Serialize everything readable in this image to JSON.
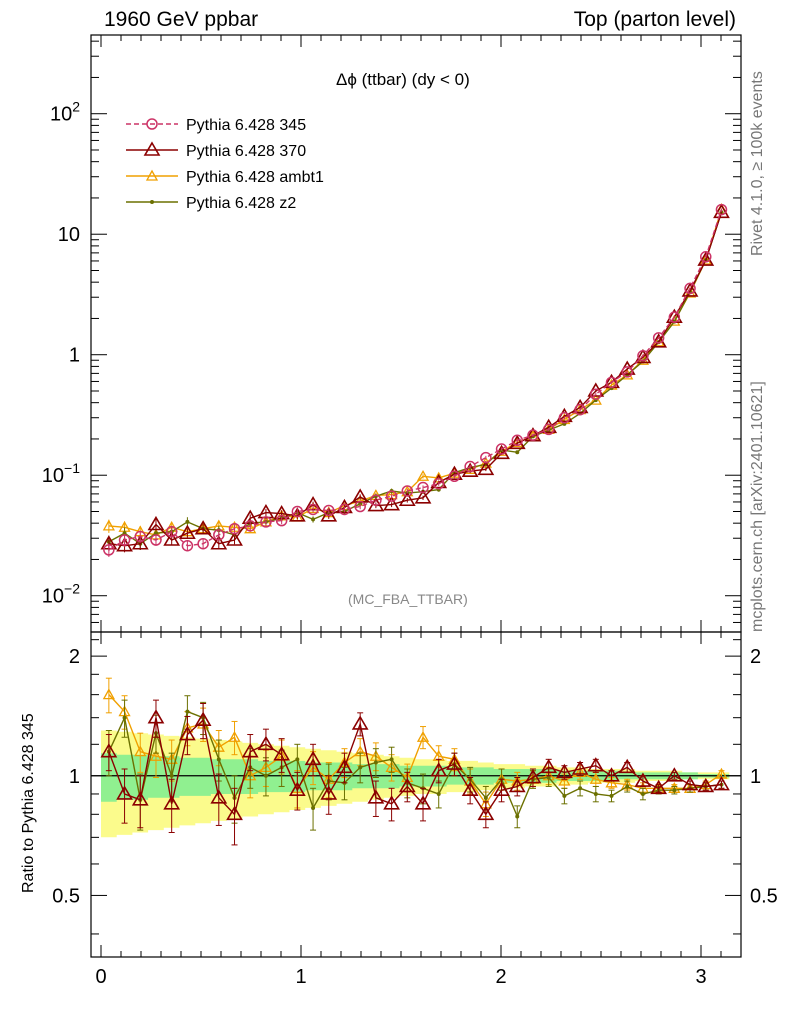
{
  "header": {
    "left": "1960 GeV ppbar",
    "right": "Top (parton level)"
  },
  "side": {
    "rivet": "Rivet 4.1.0, ≥ 100k events",
    "mcplots": "mcplots.cern.ch [arXiv:2401.10621]"
  },
  "chart_data": {
    "type": "line",
    "title": "Δϕ (ttbar) (dy < 0)",
    "watermark": "(MC_FBA_TTBAR)",
    "xlabel": "",
    "ylabel": "",
    "ratio_ylabel": "Ratio to Pythia 6.428 345",
    "xlim": [
      -0.05,
      3.2
    ],
    "ylim": [
      0.005,
      450
    ],
    "ratio_ylim": [
      0.35,
      2.3
    ],
    "x_ticks": [
      "0",
      "1",
      "2",
      "3"
    ],
    "y_ticks": [
      {
        "base": "10",
        "exp": "−2",
        "value": 0.01
      },
      {
        "base": "10",
        "exp": "−1",
        "value": 0.1
      },
      {
        "base": "1",
        "exp": "",
        "value": 1
      },
      {
        "base": "10",
        "exp": "",
        "value": 10
      },
      {
        "base": "10",
        "exp": "2",
        "value": 100
      }
    ],
    "ratio_ticks": [
      "0.5",
      "1",
      "2"
    ],
    "x": [
      0.0393,
      0.1178,
      0.1963,
      0.2749,
      0.3534,
      0.432,
      0.5105,
      0.589,
      0.6676,
      0.7461,
      0.8247,
      0.9032,
      0.9817,
      1.0603,
      1.1388,
      1.2174,
      1.2959,
      1.3744,
      1.453,
      1.5315,
      1.6101,
      1.6886,
      1.7671,
      1.8457,
      1.9242,
      2.0028,
      2.0813,
      2.1598,
      2.2384,
      2.3169,
      2.3955,
      2.474,
      2.5525,
      2.6311,
      2.7096,
      2.7882,
      2.8667,
      2.9452,
      3.0238,
      3.1023
    ],
    "series": [
      {
        "name": "Pythia 6.428 345",
        "color": "#cc3366",
        "marker": "circle",
        "dashed": true,
        "values": [
          0.024,
          0.029,
          0.031,
          0.029,
          0.034,
          0.026,
          0.027,
          0.032,
          0.036,
          0.038,
          0.041,
          0.042,
          0.05,
          0.052,
          0.051,
          0.052,
          0.055,
          0.062,
          0.067,
          0.074,
          0.079,
          0.085,
          0.098,
          0.118,
          0.14,
          0.165,
          0.195,
          0.215,
          0.24,
          0.3,
          0.35,
          0.47,
          0.59,
          0.72,
          0.98,
          1.38,
          2.05,
          3.55,
          6.5,
          16.0
        ]
      },
      {
        "name": "Pythia 6.428 370",
        "color": "#8b0000",
        "marker": "triangle-open",
        "dashed": false,
        "values": [
          0.027,
          0.026,
          0.027,
          0.039,
          0.029,
          0.033,
          0.036,
          0.027,
          0.029,
          0.044,
          0.049,
          0.048,
          0.046,
          0.057,
          0.046,
          0.054,
          0.066,
          0.056,
          0.057,
          0.062,
          0.065,
          0.087,
          0.102,
          0.108,
          0.112,
          0.152,
          0.184,
          0.213,
          0.25,
          0.308,
          0.365,
          0.5,
          0.59,
          0.76,
          0.95,
          1.28,
          2.05,
          3.38,
          6.1,
          15.2
        ]
      },
      {
        "name": "Pythia 6.428 ambt1",
        "color": "#f0a000",
        "marker": "triangle-open-small",
        "dashed": false,
        "values": [
          0.038,
          0.037,
          0.034,
          0.032,
          0.037,
          0.034,
          0.036,
          0.038,
          0.037,
          0.036,
          0.041,
          0.046,
          0.045,
          0.053,
          0.049,
          0.056,
          0.061,
          0.068,
          0.069,
          0.073,
          0.098,
          0.095,
          0.104,
          0.112,
          0.126,
          0.158,
          0.187,
          0.21,
          0.24,
          0.29,
          0.35,
          0.42,
          0.56,
          0.68,
          0.9,
          1.28,
          1.9,
          3.25,
          6.1,
          16.1
        ]
      },
      {
        "name": "Pythia 6.428 z2",
        "color": "#6b7000",
        "marker": "dot",
        "dashed": false,
        "values": [
          0.028,
          0.033,
          0.027,
          0.033,
          0.034,
          0.041,
          0.036,
          0.035,
          0.032,
          0.04,
          0.041,
          0.044,
          0.049,
          0.043,
          0.049,
          0.05,
          0.058,
          0.067,
          0.074,
          0.071,
          0.073,
          0.076,
          0.105,
          0.116,
          0.123,
          0.162,
          0.155,
          0.21,
          0.237,
          0.267,
          0.326,
          0.42,
          0.528,
          0.68,
          0.88,
          1.27,
          1.88,
          3.3,
          6.1,
          15.2
        ]
      }
    ],
    "ratio_series": [
      {
        "name": "Pythia 6.428 370",
        "values": [
          1.15,
          0.9,
          0.87,
          1.4,
          0.85,
          1.27,
          1.38,
          0.88,
          0.8,
          1.15,
          1.2,
          1.13,
          0.92,
          1.1,
          0.9,
          1.05,
          1.35,
          0.88,
          0.85,
          0.94,
          0.85,
          1.03,
          1.07,
          0.92,
          0.8,
          0.92,
          0.94,
          0.99,
          1.05,
          1.02,
          1.04,
          1.06,
          1.0,
          1.05,
          0.97,
          0.93,
          1.0,
          0.95,
          0.94,
          0.95
        ],
        "errors": [
          0.12,
          0.14,
          0.13,
          0.15,
          0.13,
          0.14,
          0.14,
          0.13,
          0.13,
          0.12,
          0.11,
          0.11,
          0.1,
          0.1,
          0.1,
          0.09,
          0.09,
          0.09,
          0.08,
          0.08,
          0.08,
          0.07,
          0.07,
          0.07,
          0.06,
          0.06,
          0.05,
          0.05,
          0.05,
          0.04,
          0.04,
          0.04,
          0.03,
          0.03,
          0.03,
          0.02,
          0.02,
          0.02,
          0.02,
          0.02
        ]
      },
      {
        "name": "Pythia 6.428 ambt1",
        "values": [
          1.6,
          1.45,
          1.15,
          1.12,
          1.1,
          1.32,
          1.35,
          1.18,
          1.25,
          1.0,
          1.05,
          1.12,
          0.93,
          1.05,
          0.98,
          1.08,
          1.15,
          1.12,
          1.05,
          0.99,
          1.25,
          1.12,
          1.1,
          0.97,
          0.85,
          0.98,
          0.97,
          0.98,
          1.0,
          0.97,
          1.02,
          0.98,
          0.96,
          0.95,
          0.93,
          0.93,
          0.93,
          0.93,
          0.95,
          1.01
        ],
        "errors": [
          0.16,
          0.14,
          0.13,
          0.13,
          0.13,
          0.13,
          0.13,
          0.12,
          0.12,
          0.12,
          0.11,
          0.11,
          0.1,
          0.1,
          0.1,
          0.09,
          0.09,
          0.09,
          0.08,
          0.08,
          0.08,
          0.07,
          0.07,
          0.07,
          0.06,
          0.06,
          0.05,
          0.05,
          0.05,
          0.04,
          0.04,
          0.04,
          0.03,
          0.03,
          0.03,
          0.02,
          0.02,
          0.02,
          0.02,
          0.02
        ]
      },
      {
        "name": "Pythia 6.428 z2",
        "values": [
          1.15,
          1.4,
          0.87,
          1.28,
          1.0,
          1.45,
          1.4,
          1.1,
          0.88,
          1.05,
          1.0,
          1.05,
          1.1,
          0.83,
          0.97,
          0.96,
          1.05,
          1.08,
          1.1,
          0.96,
          0.93,
          0.9,
          1.07,
          0.98,
          0.88,
          0.98,
          0.79,
          0.98,
          0.99,
          0.89,
          0.93,
          0.9,
          0.89,
          0.94,
          0.9,
          0.92,
          0.92,
          0.93,
          0.94,
          0.95
        ],
        "errors": [
          0.15,
          0.15,
          0.14,
          0.14,
          0.14,
          0.14,
          0.13,
          0.13,
          0.12,
          0.12,
          0.11,
          0.11,
          0.1,
          0.1,
          0.1,
          0.09,
          0.09,
          0.09,
          0.08,
          0.08,
          0.08,
          0.07,
          0.07,
          0.07,
          0.06,
          0.06,
          0.05,
          0.05,
          0.05,
          0.04,
          0.04,
          0.04,
          0.03,
          0.03,
          0.03,
          0.02,
          0.02,
          0.02,
          0.02,
          0.02
        ]
      }
    ],
    "ratio_bands": {
      "inner_color": "#90f090",
      "outer_color": "#fbfb8c",
      "inner_halfwidth": [
        0.14,
        0.13,
        0.13,
        0.12,
        0.12,
        0.11,
        0.11,
        0.1,
        0.1,
        0.1,
        0.09,
        0.09,
        0.09,
        0.08,
        0.08,
        0.08,
        0.07,
        0.07,
        0.07,
        0.06,
        0.06,
        0.06,
        0.05,
        0.05,
        0.05,
        0.04,
        0.04,
        0.04,
        0.04,
        0.03,
        0.03,
        0.03,
        0.03,
        0.02,
        0.02,
        0.02,
        0.02,
        0.02,
        0.01,
        0.01
      ],
      "outer_halfwidth": [
        0.3,
        0.29,
        0.28,
        0.27,
        0.26,
        0.25,
        0.24,
        0.23,
        0.22,
        0.21,
        0.2,
        0.19,
        0.18,
        0.17,
        0.16,
        0.15,
        0.14,
        0.13,
        0.12,
        0.11,
        0.1,
        0.1,
        0.09,
        0.09,
        0.08,
        0.07,
        0.07,
        0.06,
        0.06,
        0.05,
        0.05,
        0.04,
        0.04,
        0.04,
        0.03,
        0.03,
        0.03,
        0.02,
        0.02,
        0.02
      ]
    },
    "legend_position": "top-left",
    "grid": false
  }
}
